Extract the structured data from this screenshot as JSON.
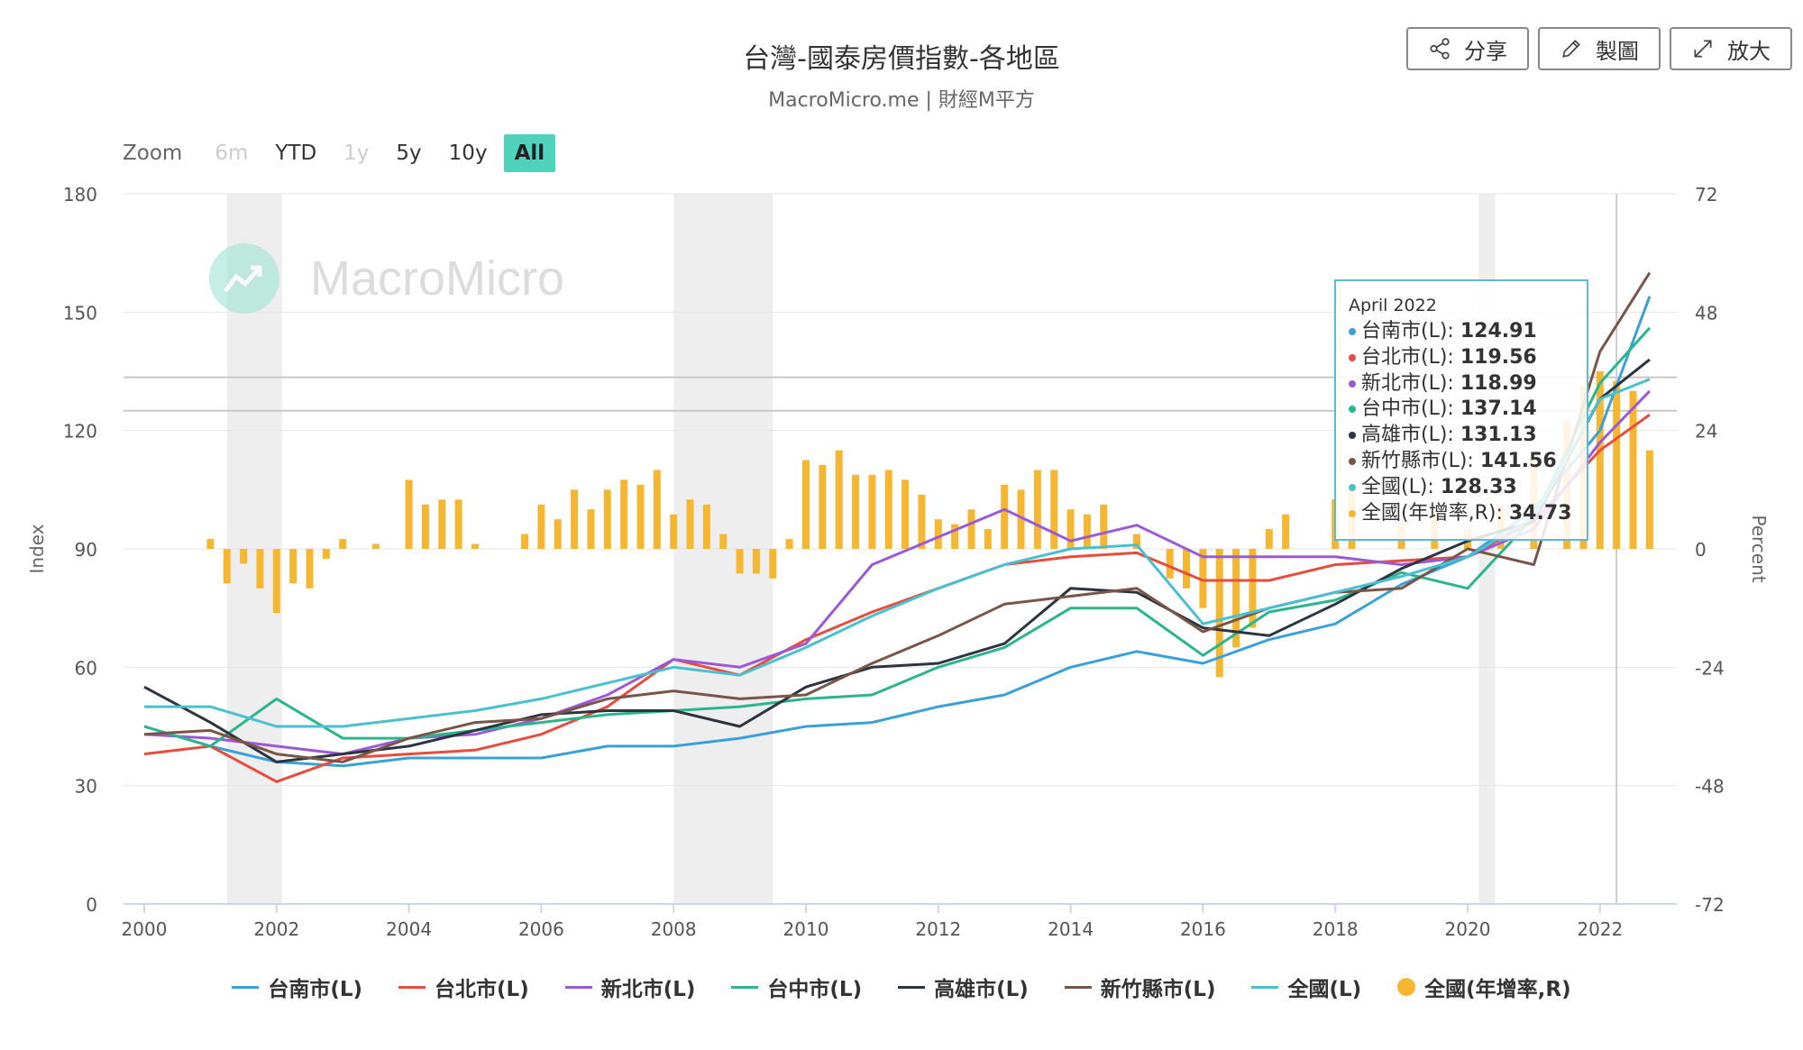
{
  "header": {
    "title": "台灣-國泰房價指數-各地區",
    "subtitle": "MacroMicro.me | 財經M平方"
  },
  "toolbar": {
    "share_label": "分享",
    "edit_label": "製圖",
    "expand_label": "放大"
  },
  "zoom": {
    "label": "Zoom",
    "buttons": [
      {
        "label": "6m",
        "state": "disabled"
      },
      {
        "label": "YTD",
        "state": "normal"
      },
      {
        "label": "1y",
        "state": "disabled"
      },
      {
        "label": "5y",
        "state": "normal"
      },
      {
        "label": "10y",
        "state": "normal"
      },
      {
        "label": "All",
        "state": "active"
      }
    ]
  },
  "watermark": "MacroMicro",
  "tooltip": {
    "date": "April 2022",
    "rows": [
      {
        "label": "台南市(L): ",
        "value": "124.91",
        "color": "#3aa0d8"
      },
      {
        "label": "台北市(L): ",
        "value": "119.56",
        "color": "#e74c3c"
      },
      {
        "label": "新北市(L): ",
        "value": "118.99",
        "color": "#9b59d8"
      },
      {
        "label": "台中市(L): ",
        "value": "137.14",
        "color": "#2ab58d"
      },
      {
        "label": "高雄市(L): ",
        "value": "131.13",
        "color": "#2c3440"
      },
      {
        "label": "新竹縣市(L): ",
        "value": "141.56",
        "color": "#7a5547"
      },
      {
        "label": "全國(L): ",
        "value": "128.33",
        "color": "#48c0d0"
      },
      {
        "label": "全國(年增率,R): ",
        "value": "34.73",
        "color": "#f5b731"
      }
    ]
  },
  "chart_data": {
    "type": "line",
    "title": "台灣-國泰房價指數-各地區",
    "x_ticks": [
      "2000",
      "2002",
      "2004",
      "2006",
      "2008",
      "2010",
      "2012",
      "2014",
      "2016",
      "2018",
      "2020",
      "2022"
    ],
    "y_left": {
      "label": "Index",
      "min": 0,
      "max": 180,
      "ticks": [
        0,
        30,
        60,
        90,
        120,
        150,
        180
      ]
    },
    "y_right": {
      "label": "Percent",
      "min": -72,
      "max": 72,
      "ticks": [
        -72,
        -48,
        -24,
        0,
        24,
        48,
        72
      ]
    },
    "recession_bands": [
      [
        "2001-04",
        "2002-02"
      ],
      [
        "2008-01",
        "2009-07"
      ],
      [
        "2020-03",
        "2020-06"
      ]
    ],
    "reference_lines_left": [
      133.5,
      125
    ],
    "crosshair_x": "2022-04",
    "legend_position": "bottom",
    "series": [
      {
        "name": "台南市(L)",
        "color": "#3aa0d8",
        "axis": "left",
        "points": [
          [
            2000,
            45
          ],
          [
            2001,
            40
          ],
          [
            2002,
            36
          ],
          [
            2003,
            35
          ],
          [
            2004,
            37
          ],
          [
            2005,
            37
          ],
          [
            2006,
            37
          ],
          [
            2007,
            40
          ],
          [
            2008,
            40
          ],
          [
            2009,
            42
          ],
          [
            2010,
            45
          ],
          [
            2011,
            46
          ],
          [
            2012,
            50
          ],
          [
            2013,
            53
          ],
          [
            2014,
            60
          ],
          [
            2015,
            64
          ],
          [
            2016,
            61
          ],
          [
            2017,
            67
          ],
          [
            2018,
            71
          ],
          [
            2019,
            81
          ],
          [
            2020,
            88
          ],
          [
            2021,
            100
          ],
          [
            2022,
            120
          ],
          [
            2022.75,
            154
          ]
        ]
      },
      {
        "name": "台北市(L)",
        "color": "#e74c3c",
        "axis": "left",
        "points": [
          [
            2000,
            38
          ],
          [
            2001,
            40
          ],
          [
            2002,
            31
          ],
          [
            2003,
            37
          ],
          [
            2004,
            38
          ],
          [
            2005,
            39
          ],
          [
            2006,
            43
          ],
          [
            2007,
            50
          ],
          [
            2008,
            62
          ],
          [
            2009,
            58
          ],
          [
            2010,
            67
          ],
          [
            2011,
            74
          ],
          [
            2012,
            80
          ],
          [
            2013,
            86
          ],
          [
            2014,
            88
          ],
          [
            2015,
            89
          ],
          [
            2016,
            82
          ],
          [
            2017,
            82
          ],
          [
            2018,
            86
          ],
          [
            2019,
            87
          ],
          [
            2020,
            88
          ],
          [
            2021,
            97
          ],
          [
            2022,
            115
          ],
          [
            2022.75,
            124
          ]
        ]
      },
      {
        "name": "新北市(L)",
        "color": "#9b59d8",
        "axis": "left",
        "points": [
          [
            2000,
            43
          ],
          [
            2001,
            42
          ],
          [
            2002,
            40
          ],
          [
            2003,
            38
          ],
          [
            2004,
            42
          ],
          [
            2005,
            43
          ],
          [
            2006,
            47
          ],
          [
            2007,
            53
          ],
          [
            2008,
            62
          ],
          [
            2009,
            60
          ],
          [
            2010,
            66
          ],
          [
            2011,
            86
          ],
          [
            2012,
            93
          ],
          [
            2013,
            100
          ],
          [
            2014,
            92
          ],
          [
            2015,
            96
          ],
          [
            2016,
            88
          ],
          [
            2017,
            88
          ],
          [
            2018,
            88
          ],
          [
            2019,
            86
          ],
          [
            2020,
            88
          ],
          [
            2021,
            95
          ],
          [
            2022,
            117
          ],
          [
            2022.75,
            130
          ]
        ]
      },
      {
        "name": "台中市(L)",
        "color": "#2ab58d",
        "axis": "left",
        "points": [
          [
            2000,
            45
          ],
          [
            2001,
            40
          ],
          [
            2002,
            52
          ],
          [
            2003,
            42
          ],
          [
            2004,
            42
          ],
          [
            2005,
            44
          ],
          [
            2006,
            46
          ],
          [
            2007,
            48
          ],
          [
            2008,
            49
          ],
          [
            2009,
            50
          ],
          [
            2010,
            52
          ],
          [
            2011,
            53
          ],
          [
            2012,
            60
          ],
          [
            2013,
            65
          ],
          [
            2014,
            75
          ],
          [
            2015,
            75
          ],
          [
            2016,
            63
          ],
          [
            2017,
            74
          ],
          [
            2018,
            77
          ],
          [
            2019,
            84
          ],
          [
            2020,
            80
          ],
          [
            2021,
            98
          ],
          [
            2022,
            132
          ],
          [
            2022.75,
            146
          ]
        ]
      },
      {
        "name": "高雄市(L)",
        "color": "#2c3440",
        "axis": "left",
        "points": [
          [
            2000,
            55
          ],
          [
            2001,
            46
          ],
          [
            2002,
            36
          ],
          [
            2003,
            38
          ],
          [
            2004,
            40
          ],
          [
            2005,
            44
          ],
          [
            2006,
            48
          ],
          [
            2007,
            49
          ],
          [
            2008,
            49
          ],
          [
            2009,
            45
          ],
          [
            2010,
            55
          ],
          [
            2011,
            60
          ],
          [
            2012,
            61
          ],
          [
            2013,
            66
          ],
          [
            2014,
            80
          ],
          [
            2015,
            79
          ],
          [
            2016,
            70
          ],
          [
            2017,
            68
          ],
          [
            2018,
            76
          ],
          [
            2019,
            85
          ],
          [
            2020,
            92
          ],
          [
            2021,
            97
          ],
          [
            2022,
            128
          ],
          [
            2022.75,
            138
          ]
        ]
      },
      {
        "name": "新竹縣市(L)",
        "color": "#7a5547",
        "axis": "left",
        "points": [
          [
            2000,
            43
          ],
          [
            2001,
            44
          ],
          [
            2002,
            38
          ],
          [
            2003,
            36
          ],
          [
            2004,
            42
          ],
          [
            2005,
            46
          ],
          [
            2006,
            47
          ],
          [
            2007,
            52
          ],
          [
            2008,
            54
          ],
          [
            2009,
            52
          ],
          [
            2010,
            53
          ],
          [
            2011,
            61
          ],
          [
            2012,
            68
          ],
          [
            2013,
            76
          ],
          [
            2014,
            78
          ],
          [
            2015,
            80
          ],
          [
            2016,
            69
          ],
          [
            2017,
            75
          ],
          [
            2018,
            79
          ],
          [
            2019,
            80
          ],
          [
            2020,
            90
          ],
          [
            2021,
            86
          ],
          [
            2022,
            140
          ],
          [
            2022.75,
            160
          ]
        ]
      },
      {
        "name": "全國(L)",
        "color": "#48c0d0",
        "axis": "left",
        "points": [
          [
            2000,
            50
          ],
          [
            2001,
            50
          ],
          [
            2002,
            45
          ],
          [
            2003,
            45
          ],
          [
            2004,
            47
          ],
          [
            2005,
            49
          ],
          [
            2006,
            52
          ],
          [
            2007,
            56
          ],
          [
            2008,
            60
          ],
          [
            2009,
            58
          ],
          [
            2010,
            65
          ],
          [
            2011,
            73
          ],
          [
            2012,
            80
          ],
          [
            2013,
            86
          ],
          [
            2014,
            90
          ],
          [
            2015,
            91
          ],
          [
            2016,
            71
          ],
          [
            2017,
            75
          ],
          [
            2018,
            79
          ],
          [
            2019,
            83
          ],
          [
            2020,
            88
          ],
          [
            2021,
            98
          ],
          [
            2022,
            128
          ],
          [
            2022.75,
            133
          ]
        ]
      },
      {
        "name": "全國(年增率,R)",
        "color": "#f5b731",
        "axis": "right",
        "type": "bar",
        "points": [
          [
            2001,
            2
          ],
          [
            2001.25,
            -7
          ],
          [
            2001.5,
            -3
          ],
          [
            2001.75,
            -8
          ],
          [
            2002,
            -13
          ],
          [
            2002.25,
            -7
          ],
          [
            2002.5,
            -8
          ],
          [
            2002.75,
            -2
          ],
          [
            2003,
            2
          ],
          [
            2003.5,
            1
          ],
          [
            2004,
            14
          ],
          [
            2004.25,
            9
          ],
          [
            2004.5,
            10
          ],
          [
            2004.75,
            10
          ],
          [
            2005,
            1
          ],
          [
            2005.75,
            3
          ],
          [
            2006,
            9
          ],
          [
            2006.25,
            6
          ],
          [
            2006.5,
            12
          ],
          [
            2006.75,
            8
          ],
          [
            2007,
            12
          ],
          [
            2007.25,
            14
          ],
          [
            2007.5,
            13
          ],
          [
            2007.75,
            16
          ],
          [
            2008,
            7
          ],
          [
            2008.25,
            10
          ],
          [
            2008.5,
            9
          ],
          [
            2008.75,
            3
          ],
          [
            2009,
            -5
          ],
          [
            2009.25,
            -5
          ],
          [
            2009.5,
            -6
          ],
          [
            2009.75,
            2
          ],
          [
            2010,
            18
          ],
          [
            2010.25,
            17
          ],
          [
            2010.5,
            20
          ],
          [
            2010.75,
            15
          ],
          [
            2011,
            15
          ],
          [
            2011.25,
            16
          ],
          [
            2011.5,
            14
          ],
          [
            2011.75,
            11
          ],
          [
            2012,
            6
          ],
          [
            2012.25,
            5
          ],
          [
            2012.5,
            8
          ],
          [
            2012.75,
            4
          ],
          [
            2013,
            13
          ],
          [
            2013.25,
            12
          ],
          [
            2013.5,
            16
          ],
          [
            2013.75,
            16
          ],
          [
            2014,
            8
          ],
          [
            2014.25,
            7
          ],
          [
            2014.5,
            9
          ],
          [
            2015,
            3
          ],
          [
            2015.5,
            -6
          ],
          [
            2015.75,
            -8
          ],
          [
            2016,
            -12
          ],
          [
            2016.25,
            -26
          ],
          [
            2016.5,
            -20
          ],
          [
            2016.75,
            -16
          ],
          [
            2017,
            4
          ],
          [
            2017.25,
            7
          ],
          [
            2018,
            10
          ],
          [
            2018.25,
            12
          ],
          [
            2019,
            5
          ],
          [
            2019.5,
            8
          ],
          [
            2020,
            4
          ],
          [
            2020.5,
            9
          ],
          [
            2021,
            18
          ],
          [
            2021.5,
            26
          ],
          [
            2021.75,
            33
          ],
          [
            2022,
            36
          ],
          [
            2022.25,
            34
          ],
          [
            2022.5,
            32
          ],
          [
            2022.75,
            20
          ]
        ]
      }
    ]
  }
}
